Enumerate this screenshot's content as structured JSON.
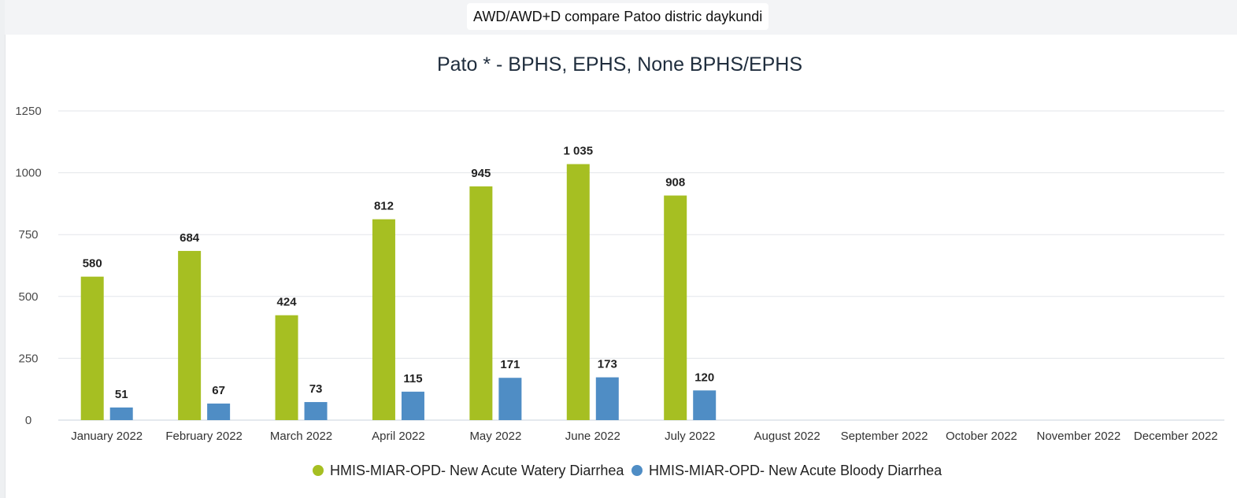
{
  "header": {
    "title": "AWD/AWD+D compare Patoo distric daykundi"
  },
  "chart_data": {
    "type": "bar",
    "title": "Pato * - BPHS, EPHS, None BPHS/EPHS",
    "xlabel": "",
    "ylabel": "",
    "ylim": [
      0,
      1250
    ],
    "yticks": [
      0,
      250,
      500,
      750,
      1000,
      1250
    ],
    "ytick_labels": [
      "0",
      "250",
      "500",
      "750",
      "1000",
      "1250"
    ],
    "grid": true,
    "legend_position": "bottom",
    "categories": [
      "January 2022",
      "February 2022",
      "March 2022",
      "April 2022",
      "May 2022",
      "June 2022",
      "July 2022",
      "August 2022",
      "September 2022",
      "October 2022",
      "November 2022",
      "December 2022"
    ],
    "series": [
      {
        "name": "HMIS-MIAR-OPD- New Acute Watery Diarrhea",
        "color": "#a6bf22",
        "values": [
          580,
          684,
          424,
          812,
          945,
          1035,
          908,
          null,
          null,
          null,
          null,
          null
        ],
        "labels": [
          "580",
          "684",
          "424",
          "812",
          "945",
          "1 035",
          "908",
          "",
          "",
          "",
          "",
          ""
        ]
      },
      {
        "name": "HMIS-MIAR-OPD- New Acute Bloody Diarrhea",
        "color": "#4f8dc5",
        "values": [
          51,
          67,
          73,
          115,
          171,
          173,
          120,
          null,
          null,
          null,
          null,
          null
        ],
        "labels": [
          "51",
          "67",
          "73",
          "115",
          "171",
          "173",
          "120",
          "",
          "",
          "",
          "",
          ""
        ]
      }
    ]
  }
}
